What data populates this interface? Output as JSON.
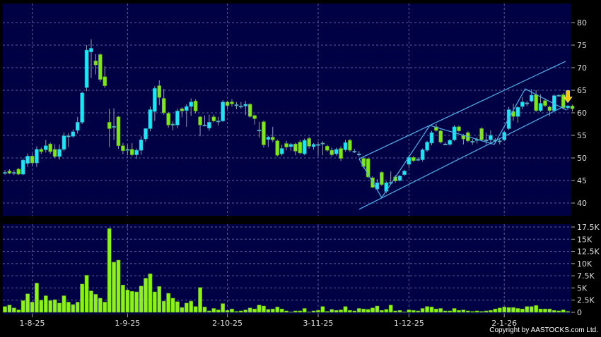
{
  "chart_data": {
    "type": "candlestick",
    "price_axis": {
      "ticks": [
        40,
        45,
        50,
        55,
        60,
        65,
        70,
        75,
        80
      ],
      "range": [
        37.5,
        84
      ]
    },
    "volume_axis": {
      "ticks": [
        0,
        2.5,
        5,
        7.5,
        10,
        12.5,
        15,
        17.5
      ],
      "tick_labels": [
        "0",
        "2.5K",
        "5K",
        "7.5K",
        "10K",
        "12.5K",
        "15K",
        "17.5K"
      ],
      "range": [
        0,
        18
      ]
    },
    "x_ticks": [
      {
        "index": 6,
        "label": "1-8-25"
      },
      {
        "index": 27,
        "label": "1-9-25"
      },
      {
        "index": 49,
        "label": "2-10-25"
      },
      {
        "index": 69,
        "label": "3-11-25"
      },
      {
        "index": 89,
        "label": "1-12-25"
      },
      {
        "index": 110,
        "label": "2-1-26"
      }
    ],
    "grid": true,
    "colors": {
      "up": "#22e4f4",
      "down": "#7ee61e",
      "volume": "#8cf21c",
      "background": "#000044",
      "trendline": "#4fb0e8",
      "marker": "#f5c800"
    },
    "ohlc": [
      [
        46.8,
        47.3,
        46.3,
        46.8
      ],
      [
        47.1,
        47.5,
        46.4,
        46.6
      ],
      [
        46.8,
        47.3,
        46.2,
        46.8
      ],
      [
        47.5,
        47.8,
        46.2,
        46.4
      ],
      [
        46.4,
        49.9,
        46.2,
        49.5
      ],
      [
        48.8,
        51.0,
        48.0,
        50.4
      ],
      [
        50.4,
        50.9,
        48.1,
        48.9
      ],
      [
        48.9,
        52.6,
        48.0,
        51.9
      ],
      [
        51.9,
        52.3,
        50.9,
        51.4
      ],
      [
        51.8,
        54.0,
        51.2,
        52.7
      ],
      [
        53.1,
        53.4,
        50.9,
        51.4
      ],
      [
        51.9,
        53.0,
        50.0,
        50.3
      ],
      [
        50.3,
        53.0,
        49.6,
        51.9
      ],
      [
        51.9,
        55.7,
        51.5,
        54.9
      ],
      [
        54.9,
        55.5,
        52.4,
        54.9
      ],
      [
        54.8,
        56.3,
        54.5,
        55.8
      ],
      [
        56.1,
        59.1,
        55.4,
        57.9
      ],
      [
        57.9,
        64.7,
        57.5,
        64.4
      ],
      [
        65.6,
        75.0,
        64.8,
        73.9
      ],
      [
        73.5,
        76.3,
        67.7,
        74.3
      ],
      [
        71.5,
        73.0,
        68.5,
        70.6
      ],
      [
        72.9,
        73.2,
        66.9,
        67.4
      ],
      [
        68.0,
        70.3,
        65.5,
        66.0
      ],
      [
        57.9,
        60.9,
        52.4,
        56.5
      ],
      [
        57.0,
        61.0,
        54.0,
        57.0
      ],
      [
        59.1,
        59.3,
        52.0,
        52.7
      ],
      [
        52.7,
        53.3,
        50.8,
        51.6
      ],
      [
        51.9,
        53.0,
        50.6,
        51.9
      ],
      [
        51.9,
        53.3,
        50.4,
        50.7
      ],
      [
        50.7,
        52.1,
        49.8,
        51.7
      ],
      [
        51.7,
        54.8,
        50.7,
        54.0
      ],
      [
        54.2,
        56.6,
        53.6,
        56.5
      ],
      [
        56.5,
        61.4,
        55.9,
        60.7
      ],
      [
        60.3,
        65.9,
        58.2,
        65.4
      ],
      [
        66.0,
        67.2,
        61.7,
        63.4
      ],
      [
        63.2,
        65.3,
        59.6,
        60.0
      ],
      [
        59.9,
        60.2,
        56.7,
        57.3
      ],
      [
        57.5,
        58.1,
        56.1,
        57.5
      ],
      [
        57.3,
        60.9,
        56.6,
        60.4
      ],
      [
        60.9,
        61.2,
        59.0,
        60.4
      ],
      [
        60.5,
        61.9,
        56.9,
        61.4
      ],
      [
        61.4,
        63.2,
        59.3,
        62.4
      ],
      [
        62.6,
        63.0,
        59.9,
        60.4
      ],
      [
        59.1,
        59.3,
        54.8,
        57.3
      ],
      [
        57.3,
        59.4,
        57.0,
        57.3
      ],
      [
        56.6,
        59.6,
        56.0,
        57.9
      ],
      [
        59.1,
        59.6,
        57.9,
        58.2
      ],
      [
        58.2,
        59.1,
        57.2,
        58.2
      ],
      [
        58.2,
        62.8,
        58.0,
        62.4
      ],
      [
        62.4,
        62.7,
        60.8,
        61.6
      ],
      [
        62.4,
        63.0,
        61.4,
        62.0
      ],
      [
        61.8,
        62.4,
        60.8,
        61.8
      ],
      [
        61.5,
        62.4,
        60.9,
        61.5
      ],
      [
        61.5,
        62.6,
        59.5,
        61.9
      ],
      [
        61.9,
        62.1,
        58.9,
        59.2
      ],
      [
        59.4,
        59.6,
        57.4,
        58.7
      ],
      [
        56.2,
        58.0,
        54.5,
        56.2
      ],
      [
        58.0,
        58.3,
        52.3,
        52.9
      ],
      [
        54.1,
        54.9,
        52.4,
        54.6
      ],
      [
        54.6,
        56.9,
        53.5,
        54.0
      ],
      [
        53.8,
        54.1,
        50.3,
        50.6
      ],
      [
        50.9,
        52.9,
        50.5,
        52.1
      ],
      [
        53.2,
        53.8,
        51.7,
        52.4
      ],
      [
        52.5,
        53.3,
        51.6,
        53.0
      ],
      [
        53.1,
        53.4,
        50.6,
        51.5
      ],
      [
        53.5,
        54.0,
        50.8,
        51.1
      ],
      [
        50.9,
        54.3,
        50.6,
        53.9
      ],
      [
        54.3,
        54.7,
        52.1,
        52.6
      ],
      [
        52.5,
        53.3,
        51.8,
        53.0
      ],
      [
        53.0,
        53.6,
        50.5,
        53.0
      ],
      [
        53.3,
        53.7,
        50.6,
        53.3
      ],
      [
        52.6,
        52.9,
        51.4,
        51.7
      ],
      [
        51.7,
        52.3,
        50.3,
        50.7
      ],
      [
        50.9,
        52.3,
        50.5,
        51.9
      ],
      [
        52.1,
        52.6,
        49.3,
        49.9
      ],
      [
        51.8,
        54.0,
        51.4,
        53.4
      ],
      [
        53.9,
        54.2,
        51.3,
        51.7
      ],
      [
        51.5,
        52.0,
        51.1,
        51.5
      ],
      [
        50.9,
        51.5,
        50.3,
        50.9
      ],
      [
        49.9,
        50.2,
        47.7,
        48.1
      ],
      [
        49.8,
        50.0,
        45.5,
        45.8
      ],
      [
        45.6,
        45.9,
        43.3,
        43.5
      ],
      [
        43.1,
        45.3,
        42.8,
        44.5
      ],
      [
        46.8,
        47.0,
        43.8,
        44.1
      ],
      [
        42.6,
        44.8,
        42.2,
        44.5
      ],
      [
        44.6,
        47.0,
        44.2,
        44.6
      ],
      [
        45.8,
        46.2,
        44.5,
        44.9
      ],
      [
        45.0,
        46.2,
        44.8,
        46.0
      ],
      [
        46.3,
        47.4,
        46.0,
        47.1
      ],
      [
        48.6,
        50.6,
        47.8,
        50.1
      ],
      [
        50.1,
        50.4,
        49.1,
        49.4
      ],
      [
        49.7,
        50.1,
        49.3,
        49.7
      ],
      [
        49.6,
        52.1,
        49.2,
        51.8
      ],
      [
        51.7,
        53.8,
        51.3,
        53.5
      ],
      [
        53.3,
        56.0,
        52.8,
        55.6
      ],
      [
        56.9,
        57.5,
        55.8,
        56.1
      ],
      [
        56.0,
        56.3,
        53.2,
        53.5
      ],
      [
        53.1,
        53.5,
        52.8,
        53.1
      ],
      [
        53.0,
        54.2,
        52.7,
        53.9
      ],
      [
        54.0,
        57.3,
        53.7,
        56.9
      ],
      [
        56.9,
        57.2,
        55.7,
        56.0
      ],
      [
        54.9,
        55.3,
        53.0,
        54.2
      ],
      [
        55.6,
        55.9,
        53.5,
        53.8
      ],
      [
        53.7,
        54.2,
        52.9,
        53.7
      ],
      [
        54.1,
        54.6,
        53.2,
        54.1
      ],
      [
        56.5,
        56.8,
        53.7,
        54.0
      ],
      [
        54.0,
        55.6,
        53.0,
        54.0
      ],
      [
        54.0,
        56.1,
        53.0,
        55.0
      ],
      [
        54.0,
        54.4,
        53.3,
        54.0
      ],
      [
        53.8,
        54.2,
        53.0,
        53.8
      ],
      [
        54.0,
        56.0,
        53.7,
        55.7
      ],
      [
        56.5,
        61.3,
        56.2,
        60.7
      ],
      [
        60.3,
        62.0,
        58.2,
        59.2
      ],
      [
        59.2,
        61.5,
        57.8,
        61.2
      ],
      [
        61.4,
        63.5,
        60.8,
        62.4
      ],
      [
        62.2,
        62.6,
        61.5,
        62.2
      ],
      [
        62.6,
        65.2,
        62.3,
        63.9
      ],
      [
        64.0,
        65.0,
        60.2,
        60.5
      ],
      [
        60.5,
        64.1,
        60.2,
        62.1
      ],
      [
        62.7,
        63.2,
        61.3,
        61.6
      ],
      [
        61.3,
        61.6,
        59.3,
        60.5
      ],
      [
        60.5,
        64.1,
        60.2,
        63.8
      ],
      [
        63.9,
        64.1,
        63.6,
        63.9
      ],
      [
        64.0,
        64.4,
        60.8,
        61.1
      ],
      [
        61.1,
        61.7,
        60.6,
        61.5
      ],
      [
        61.5,
        61.8,
        60.3,
        60.9
      ]
    ],
    "volume": [
      1.2,
      1.5,
      0.9,
      0.5,
      2.4,
      3.8,
      2.1,
      6.0,
      2.5,
      3.4,
      2.4,
      2.6,
      1.9,
      3.4,
      2.1,
      1.6,
      2.1,
      5.8,
      7.6,
      4.4,
      3.7,
      2.9,
      2.1,
      17.2,
      10.3,
      10.7,
      5.6,
      4.6,
      4.3,
      4.2,
      5.4,
      7.0,
      7.9,
      4.2,
      5.3,
      2.3,
      3.9,
      2.9,
      2.2,
      1.0,
      1.9,
      2.3,
      1.2,
      5.1,
      1.1,
      0.3,
      0.8,
      0.5,
      1.8,
      0.4,
      0.7,
      0.2,
      0.3,
      0.5,
      0.9,
      0.7,
      1.5,
      1.3,
      0.6,
      0.7,
      1.1,
      0.7,
      0.3,
      0.1,
      0.3,
      0.3,
      0.8,
      0.1,
      0.3,
      0.4,
      1.2,
      0.2,
      0.6,
      0.4,
      0.5,
      1.2,
      0.4,
      0.3,
      0.8,
      0.7,
      0.6,
      0.9,
      1.3,
      0.4,
      0.6,
      1.5,
      0.3,
      0.4,
      0.1,
      0.5,
      0.4,
      0.3,
      0.8,
      1.2,
      1.1,
      0.7,
      0.8,
      0.3,
      0.3,
      0.8,
      0.4,
      0.5,
      0.3,
      0.2,
      0.3,
      0.2,
      0.3,
      0.4,
      0.7,
      0.9,
      1.1,
      1.0,
      1.0,
      0.8,
      0.7,
      1.2,
      1.2,
      1.4,
      0.7,
      0.7,
      0.7,
      0.4,
      0.3,
      0.5,
      0.2
    ],
    "trendlines": [
      {
        "from": [
          78,
          49.8
        ],
        "to": [
          123.5,
          71.4
        ]
      },
      {
        "from": [
          78,
          38.6
        ],
        "to": [
          123.5,
          61.6
        ]
      }
    ],
    "zigzag": [
      [
        78,
        49.8
      ],
      [
        83,
        41.2
      ],
      [
        93.6,
        57.2
      ],
      [
        107.8,
        53.0
      ],
      [
        114.6,
        65.3
      ],
      [
        123.7,
        60.6
      ]
    ],
    "marker": {
      "type": "down-arrow",
      "index": 124,
      "price": 63.5
    }
  },
  "footer": {
    "copyright": "Copyright by AASTOCKS.com Ltd."
  }
}
